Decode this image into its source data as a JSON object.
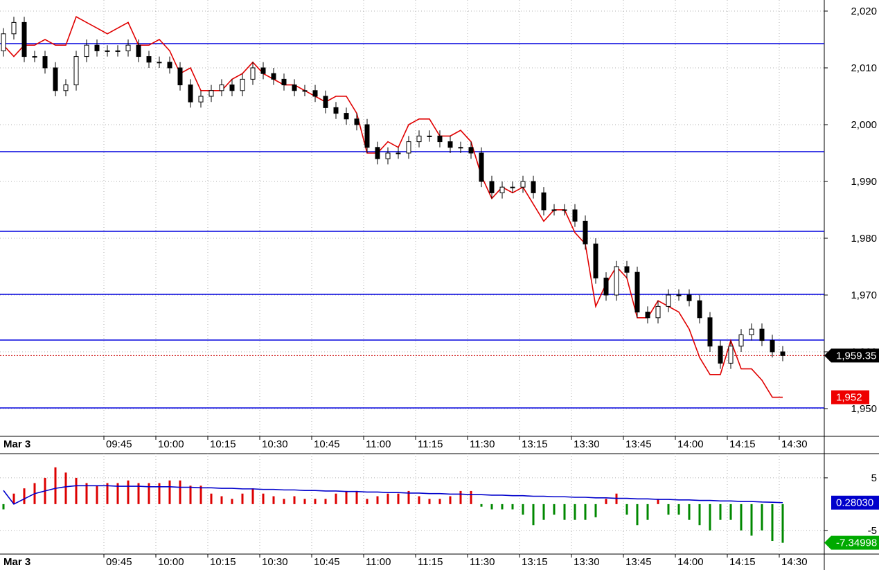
{
  "chart_data": [
    {
      "type": "candlestick",
      "categories": [
        "Mar 3",
        null,
        null,
        null,
        null,
        null,
        null,
        null,
        null,
        null,
        "09:45",
        null,
        null,
        null,
        null,
        "10:00",
        null,
        null,
        null,
        null,
        "10:15",
        null,
        null,
        null,
        null,
        "10:30",
        null,
        null,
        null,
        null,
        "10:45",
        null,
        null,
        null,
        null,
        "11:00",
        null,
        null,
        null,
        null,
        "11:15",
        null,
        null,
        null,
        null,
        "11:30",
        null,
        null,
        null,
        null,
        "13:15",
        null,
        null,
        null,
        null,
        "13:30",
        null,
        null,
        null,
        null,
        "13:45",
        null,
        null,
        null,
        null,
        "14:00",
        null,
        null,
        null,
        null,
        "14:15",
        null,
        null,
        null,
        null,
        "14:30"
      ],
      "open": [
        2013,
        2016,
        2018,
        2012,
        2012,
        2010,
        2006,
        2007,
        2012,
        2014,
        2013,
        2013,
        2013,
        2014,
        2012,
        2011,
        2011,
        2010,
        2007,
        2004,
        2005,
        2006,
        2007,
        2006,
        2008,
        2010,
        2009,
        2008,
        2007,
        2006,
        2006,
        2005,
        2003,
        2002,
        2001,
        2000,
        1996,
        1994,
        1995,
        1995,
        1997,
        1998,
        1998,
        1997,
        1996,
        1996,
        1995,
        1990,
        1988,
        1989,
        1989,
        1990,
        1988,
        1985,
        1985,
        1985,
        1983,
        1979,
        1973,
        1970,
        1975,
        1974,
        1967,
        1966,
        1968,
        1970,
        1970,
        1969,
        1966,
        1961,
        1958,
        1961,
        1963,
        1964,
        1962,
        1960
      ],
      "high": [
        2017,
        2019,
        2019,
        2013,
        2013,
        2011,
        2008,
        2013,
        2015,
        2015,
        2014,
        2014,
        2015,
        2015,
        2013,
        2012,
        2012,
        2011,
        2008,
        2006,
        2007,
        2008,
        2008,
        2009,
        2011,
        2011,
        2010,
        2009,
        2008,
        2007,
        2007,
        2006,
        2004,
        2003,
        2002,
        2001,
        1997,
        1996,
        1996,
        1998,
        1999,
        1999,
        1999,
        1998,
        1997,
        1997,
        1996,
        1991,
        1990,
        1990,
        1991,
        1991,
        1989,
        1986,
        1986,
        1986,
        1984,
        1980,
        1974,
        1976,
        1976,
        1975,
        1968,
        1969,
        1971,
        1971,
        1971,
        1970,
        1967,
        1962,
        1962,
        1964,
        1965,
        1965,
        1963,
        1961
      ],
      "low": [
        2012,
        2015,
        2011,
        2011,
        2009,
        2005,
        2005,
        2006,
        2011,
        2012,
        2012,
        2012,
        2012,
        2011,
        2010,
        2010,
        2009,
        2006,
        2003,
        2003,
        2004,
        2005,
        2005,
        2005,
        2007,
        2008,
        2007,
        2006,
        2005,
        2005,
        2004,
        2002,
        2001,
        2000,
        1999,
        1995,
        1993,
        1993,
        1994,
        1994,
        1996,
        1997,
        1996,
        1995,
        1995,
        1994,
        1989,
        1987,
        1987,
        1988,
        1988,
        1987,
        1984,
        1984,
        1984,
        1982,
        1978,
        1972,
        1969,
        1969,
        1973,
        1966,
        1965,
        1965,
        1967,
        1969,
        1968,
        1965,
        1960,
        1957,
        1957,
        1960,
        1962,
        1961,
        1959,
        1958.35
      ],
      "close": [
        2016,
        2018,
        2012,
        2012,
        2010,
        2006,
        2007,
        2012,
        2014,
        2013,
        2013,
        2013,
        2014,
        2012,
        2011,
        2011,
        2010,
        2007,
        2004,
        2005,
        2006,
        2007,
        2006,
        2008,
        2010,
        2009,
        2008,
        2007,
        2006,
        2006,
        2005,
        2003,
        2002,
        2001,
        2000,
        1996,
        1994,
        1995,
        1995,
        1997,
        1998,
        1998,
        1997,
        1996,
        1996,
        1995,
        1990,
        1988,
        1989,
        1989,
        1990,
        1988,
        1985,
        1985,
        1985,
        1983,
        1979,
        1973,
        1970,
        1975,
        1974,
        1967,
        1966,
        1968,
        1970,
        1970,
        1969,
        1966,
        1961,
        1958,
        1961,
        1963,
        1964,
        1962,
        1960,
        1959.35
      ],
      "up_color": "#ffffff",
      "down_color": "#000000",
      "end_label": "1,959.35",
      "last_line_color": "#cc0000",
      "lines": [
        {
          "color": "#e00000",
          "end_label": "1,952",
          "values": [
            2014,
            2012,
            2014,
            2014,
            2015,
            2014,
            2014,
            2019,
            2018,
            2017,
            2016,
            2017,
            2018,
            2014,
            2014,
            2015,
            2013,
            2009,
            2010,
            2006,
            2006,
            2006,
            2008,
            2009,
            2011,
            2009,
            2008,
            2007,
            2007,
            2006,
            2005,
            2004,
            2005,
            2005,
            2002,
            1995,
            1995,
            1997,
            1996,
            2000,
            2001,
            2001,
            1998,
            1998,
            1999,
            1997,
            1991,
            1987,
            1989,
            1988,
            1989,
            1986,
            1983,
            1985,
            1985,
            1981,
            1979,
            1968,
            1972,
            1975,
            1973,
            1966,
            1966,
            1969,
            1968,
            1967,
            1964,
            1959,
            1956,
            1956,
            1962,
            1957,
            1957,
            1955,
            1952,
            1952
          ]
        }
      ],
      "levels": {
        "color": "#0000dd",
        "values": [
          2014.27,
          1995.24,
          1981.22,
          1970.12,
          1962.07,
          1950.12
        ]
      },
      "ylim": [
        1945.12,
        2021.95
      ],
      "yticks": [
        {
          "value": 1950,
          "label": "1,950"
        },
        {
          "value": 1960,
          "label": "1,960"
        },
        {
          "value": 1970,
          "label": "1,970"
        },
        {
          "value": 1980,
          "label": "1,980"
        },
        {
          "value": 1990,
          "label": "1,990"
        },
        {
          "value": 2000,
          "label": "2,000"
        },
        {
          "value": 2010,
          "label": "2,010"
        },
        {
          "value": 2020,
          "label": "2,020"
        }
      ],
      "grid": true
    },
    {
      "type": "bar",
      "categories": [
        "Mar 3",
        null,
        null,
        null,
        null,
        null,
        null,
        null,
        null,
        null,
        "09:45",
        null,
        null,
        null,
        null,
        "10:00",
        null,
        null,
        null,
        null,
        "10:15",
        null,
        null,
        null,
        null,
        "10:30",
        null,
        null,
        null,
        null,
        "10:45",
        null,
        null,
        null,
        null,
        "11:00",
        null,
        null,
        null,
        null,
        "11:15",
        null,
        null,
        null,
        null,
        "11:30",
        null,
        null,
        null,
        null,
        "13:15",
        null,
        null,
        null,
        null,
        "13:30",
        null,
        null,
        null,
        null,
        "13:45",
        null,
        null,
        null,
        null,
        "14:00",
        null,
        null,
        null,
        null,
        "14:15",
        null,
        null,
        null,
        null,
        "14:30"
      ],
      "values": [
        -1,
        2,
        3,
        4,
        5,
        7,
        6,
        5,
        4,
        3.5,
        4,
        4,
        4.5,
        4,
        4,
        4,
        4.5,
        4.5,
        3.5,
        3.5,
        2,
        1.5,
        1,
        2,
        3,
        2,
        1.5,
        1,
        1.5,
        1,
        1,
        1,
        2,
        2.5,
        2.5,
        1,
        1.5,
        2,
        2,
        2.5,
        1.5,
        1,
        1,
        1.5,
        2.5,
        2.5,
        -0.5,
        -1,
        -1,
        -1,
        -2,
        -4,
        -3,
        -2,
        -3,
        -3,
        -3,
        -2.5,
        1,
        2,
        -2,
        -4,
        -3,
        1,
        -2,
        -2,
        -3,
        -4,
        -5,
        -3,
        -3,
        -5,
        -6,
        -5,
        -7,
        -7.34998
      ],
      "up_color": "#dd0000",
      "down_color": "#008800",
      "end_label": "-7.34998",
      "lines": [
        {
          "color": "#0000cc",
          "end_label": "0.28030",
          "values": [
            2.6,
            0,
            1,
            2,
            2.5,
            3,
            3.3,
            3.5,
            3.5,
            3.5,
            3.5,
            3.4,
            3.4,
            3.4,
            3.3,
            3.3,
            3.3,
            3.2,
            3.2,
            3.1,
            3.1,
            3.0,
            3.0,
            2.9,
            2.9,
            2.8,
            2.8,
            2.7,
            2.7,
            2.6,
            2.6,
            2.5,
            2.5,
            2.4,
            2.4,
            2.3,
            2.3,
            2.2,
            2.2,
            2.1,
            2.1,
            2.0,
            2.0,
            1.9,
            1.9,
            1.8,
            1.8,
            1.7,
            1.7,
            1.6,
            1.6,
            1.5,
            1.5,
            1.4,
            1.4,
            1.3,
            1.3,
            1.2,
            1.2,
            1.1,
            1.1,
            1.0,
            1.0,
            0.9,
            0.9,
            0.8,
            0.8,
            0.7,
            0.7,
            0.6,
            0.6,
            0.5,
            0.5,
            0.4,
            0.35,
            0.2803
          ]
        }
      ],
      "ylim": [
        -9.5,
        9.6
      ],
      "yticks": [
        5,
        -5
      ],
      "grid": true
    }
  ]
}
